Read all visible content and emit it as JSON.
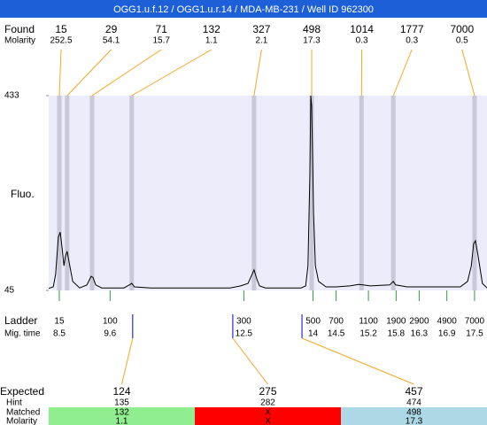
{
  "header": {
    "title": "OGG1.u.f.12 / OGG1.u.r.14 / MDA-MB-231 / Well ID 962300"
  },
  "chart_data": {
    "type": "line",
    "y_label": "Fluo.",
    "ylim": [
      45,
      433
    ],
    "yticks": [
      45,
      433
    ],
    "xlim": [
      8.27,
      17.77
    ],
    "color": "#000000",
    "x": [
      8.27,
      8.37,
      8.42,
      8.48,
      8.52,
      8.56,
      8.6,
      8.63,
      8.67,
      8.71,
      8.79,
      8.94,
      9.1,
      9.19,
      9.23,
      9.29,
      9.42,
      9.9,
      10.04,
      10.07,
      10.13,
      10.48,
      12.2,
      12.43,
      12.59,
      12.66,
      12.72,
      12.78,
      12.84,
      12.97,
      13.74,
      13.84,
      13.89,
      13.93,
      13.95,
      13.97,
      14.01,
      14.05,
      14.12,
      14.28,
      14.51,
      14.8,
      14.99,
      15.08,
      15.24,
      15.66,
      15.74,
      15.79,
      16.04,
      17.19,
      17.35,
      17.43,
      17.48,
      17.52,
      17.58,
      17.67,
      17.77
    ],
    "values": [
      49,
      52,
      77,
      151,
      161,
      130,
      94,
      112,
      123,
      103,
      63,
      50,
      56,
      73,
      71,
      56,
      50,
      50,
      57,
      59,
      52,
      50,
      50,
      54,
      59,
      73,
      86,
      68,
      54,
      50,
      50,
      54,
      94,
      271,
      433,
      412,
      200,
      94,
      63,
      52,
      52,
      54,
      57,
      56,
      54,
      56,
      63,
      56,
      52,
      52,
      63,
      94,
      138,
      144,
      112,
      59,
      50
    ],
    "found": {
      "label": "Found",
      "molarity_label": "Molarity",
      "sizes": [
        15,
        29,
        71,
        132,
        327,
        498,
        1014,
        1777,
        7000
      ],
      "molarity": [
        252.5,
        54.1,
        15.7,
        1.1,
        2.1,
        17.3,
        0.3,
        0.3,
        0.5
      ],
      "times": [
        8.5,
        8.67,
        9.21,
        10.07,
        12.72,
        13.97,
        15.05,
        15.74,
        17.5
      ]
    },
    "ladder": {
      "label": "Ladder",
      "time_label": "Mig. time",
      "sizes": [
        15,
        100,
        300,
        500,
        700,
        1100,
        1900,
        2900,
        4900,
        7000
      ],
      "times": [
        8.5,
        9.6,
        12.5,
        14,
        14.5,
        15.2,
        15.8,
        16.3,
        16.9,
        17.5
      ]
    },
    "expected": {
      "label": "Expected",
      "hint_label": "Hint",
      "matched_label": "Matched",
      "molarity_label": "Molarity",
      "sizes": [
        124,
        275,
        457
      ],
      "times": [
        10.09,
        12.26,
        13.76
      ],
      "hint": [
        135,
        282,
        474
      ],
      "matched": [
        132,
        "X",
        498
      ],
      "molarity": [
        1.1,
        "X",
        17.3
      ],
      "status_colors": [
        "#90ee90",
        "#ff0000",
        "#add8e6"
      ]
    }
  }
}
